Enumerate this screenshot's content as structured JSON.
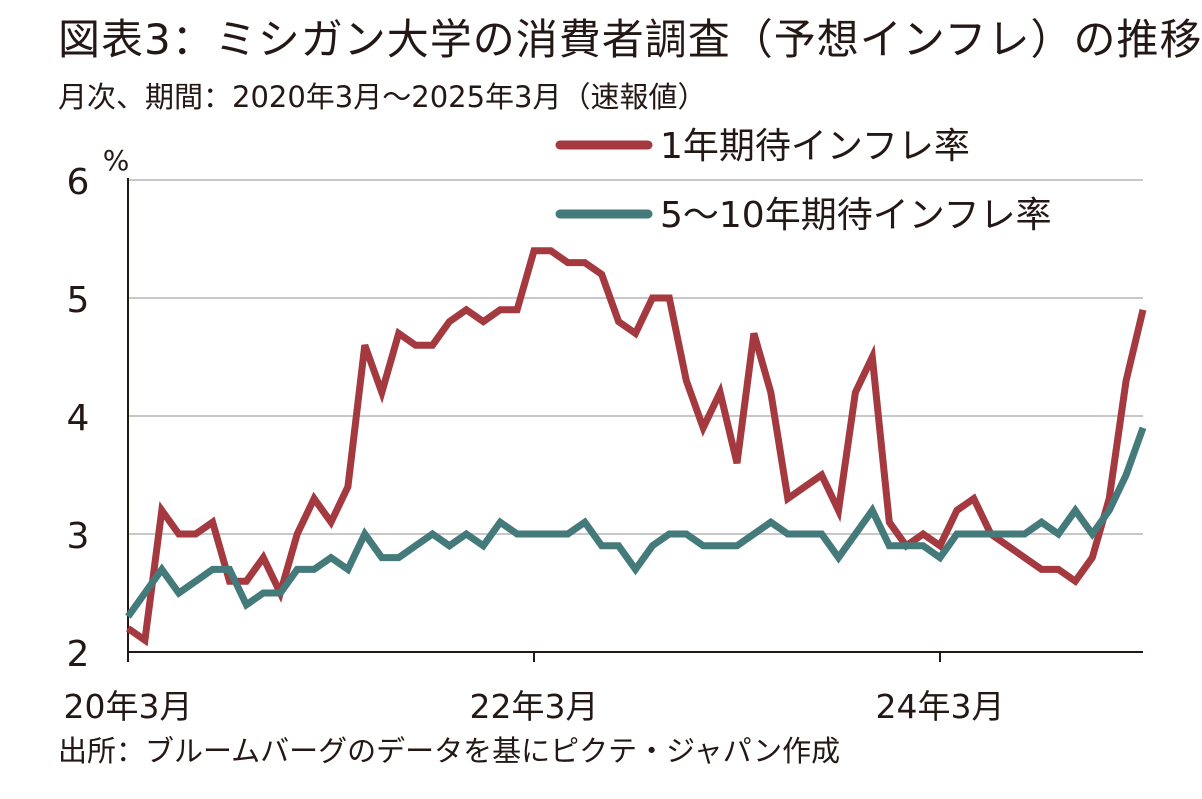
{
  "title": "図表3：ミシガン大学の消費者調査（予想インフレ）の推移",
  "subtitle": "月次、期間：2020年3月～2025年3月（速報値）",
  "source": "出所：ブルームバーグのデータを基にピクテ・ジャパン作成",
  "chart_data": {
    "type": "line",
    "y_unit": "%",
    "ylim": [
      2,
      6
    ],
    "yticks": [
      2,
      3,
      4,
      5,
      6
    ],
    "grid": true,
    "legend_position": "top-right",
    "x_tick_labels": [
      {
        "label": "20年3月",
        "index": 0
      },
      {
        "label": "22年3月",
        "index": 24
      },
      {
        "label": "24年3月",
        "index": 48
      }
    ],
    "x_start": "2020-03",
    "x_end": "2025-03",
    "series": [
      {
        "name": "1年期待インフレ率",
        "color": "#a4393f",
        "values": [
          2.2,
          2.1,
          3.2,
          3.0,
          3.0,
          3.1,
          2.6,
          2.6,
          2.8,
          2.5,
          3.0,
          3.3,
          3.1,
          3.4,
          4.6,
          4.2,
          4.7,
          4.6,
          4.6,
          4.8,
          4.9,
          4.8,
          4.9,
          4.9,
          5.4,
          5.4,
          5.3,
          5.3,
          5.2,
          4.8,
          4.7,
          5.0,
          5.0,
          4.3,
          3.9,
          4.2,
          3.6,
          4.7,
          4.2,
          3.3,
          3.4,
          3.5,
          3.2,
          4.2,
          4.5,
          3.1,
          2.9,
          3.0,
          2.9,
          3.2,
          3.3,
          3.0,
          2.9,
          2.8,
          2.7,
          2.7,
          2.6,
          2.8,
          3.3,
          4.3,
          4.9
        ]
      },
      {
        "name": "5～10年期待インフレ率",
        "color": "#457a7b",
        "values": [
          2.3,
          2.5,
          2.7,
          2.5,
          2.6,
          2.7,
          2.7,
          2.4,
          2.5,
          2.5,
          2.7,
          2.7,
          2.8,
          2.7,
          3.0,
          2.8,
          2.8,
          2.9,
          3.0,
          2.9,
          3.0,
          2.9,
          3.1,
          3.0,
          3.0,
          3.0,
          3.0,
          3.1,
          2.9,
          2.9,
          2.7,
          2.9,
          3.0,
          3.0,
          2.9,
          2.9,
          2.9,
          3.0,
          3.1,
          3.0,
          3.0,
          3.0,
          2.8,
          3.0,
          3.2,
          2.9,
          2.9,
          2.9,
          2.8,
          3.0,
          3.0,
          3.0,
          3.0,
          3.0,
          3.1,
          3.0,
          3.2,
          3.0,
          3.2,
          3.5,
          3.9
        ]
      }
    ]
  }
}
